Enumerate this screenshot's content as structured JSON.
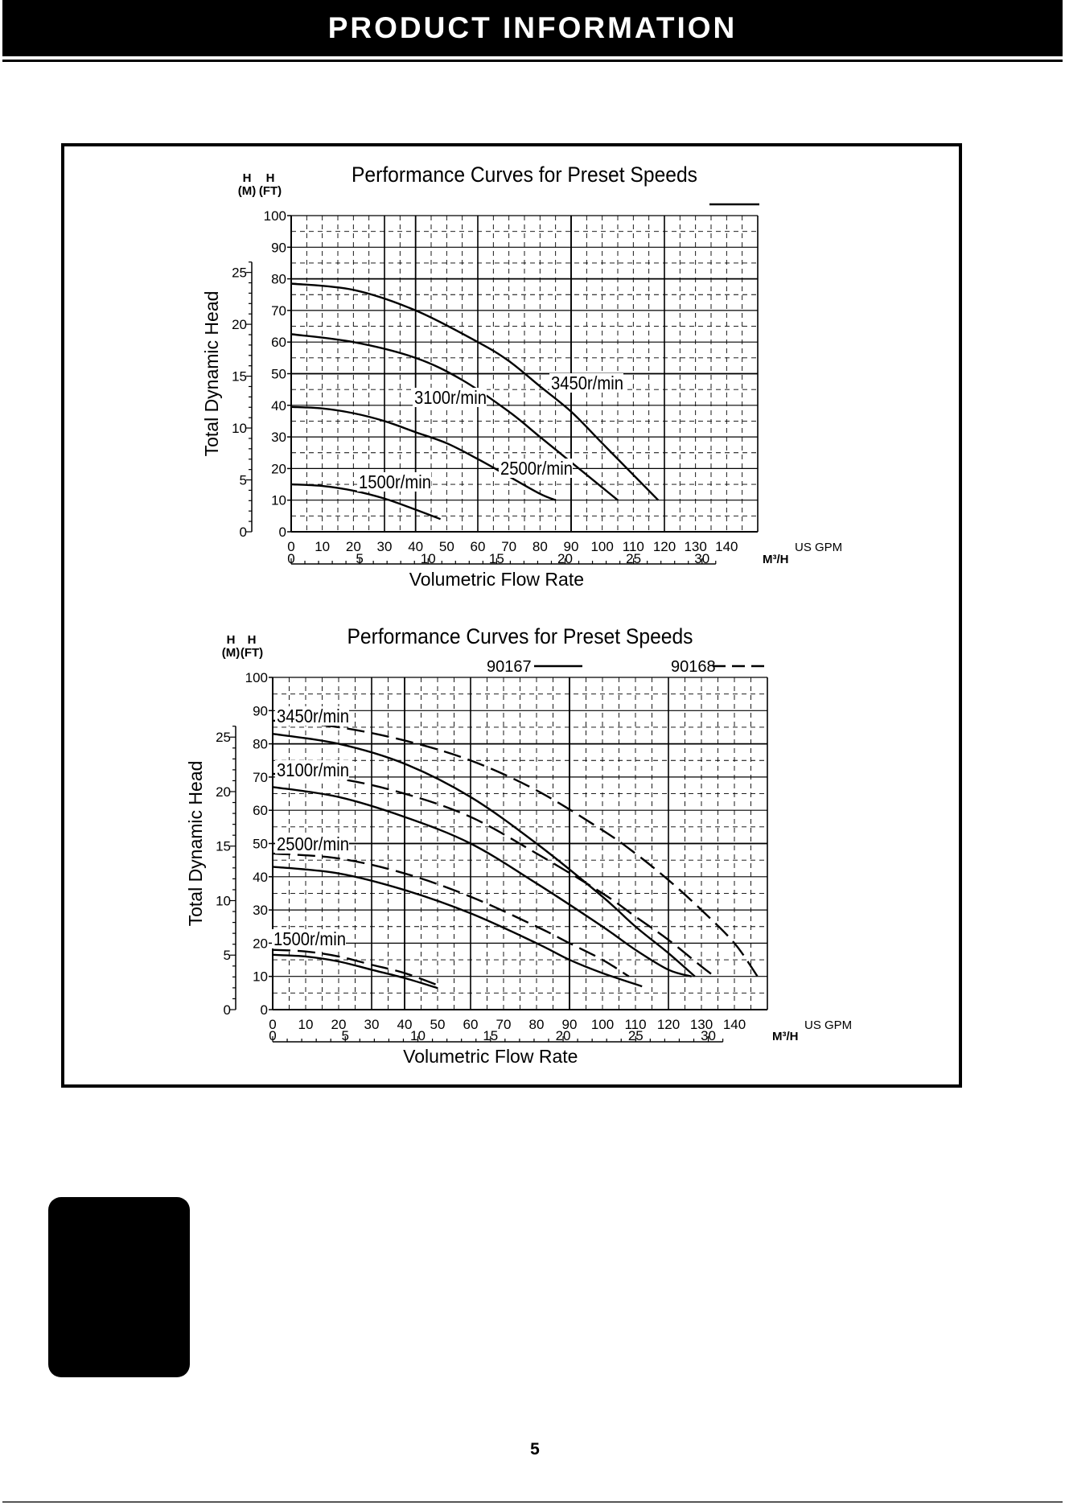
{
  "header": {
    "title": "PRODUCT  INFORMATION"
  },
  "page_number": "5",
  "colors": {
    "ink": "#000000",
    "background": "#ffffff"
  },
  "chart_data": [
    {
      "type": "line",
      "title": "Performance Curves for Preset Speeds",
      "xlabel": "Volumetric Flow Rate",
      "ylabel": "Total Dynamic Head",
      "x_unit": "US GPM",
      "x2_unit": "M³/H",
      "y_unit": "H (FT)",
      "y2_unit": "H (M)",
      "y_unit_letter": "H",
      "y_unit_paren": "(FT)",
      "y2_unit_letter": "H",
      "y2_unit_paren": "(M)",
      "xlim": [
        0,
        150
      ],
      "ylim": [
        0,
        100
      ],
      "x_ticks": [
        "0",
        "10",
        "20",
        "30",
        "40",
        "50",
        "60",
        "70",
        "80",
        "90",
        "100",
        "110",
        "120",
        "130",
        "140"
      ],
      "x2_ticks": [
        "0",
        "5",
        "10",
        "15",
        "20",
        "25",
        "30"
      ],
      "y_ticks": [
        "0",
        "10",
        "20",
        "30",
        "40",
        "50",
        "60",
        "70",
        "80",
        "90",
        "100"
      ],
      "y2_ticks": [
        "0",
        "5",
        "10",
        "15",
        "20",
        "25"
      ],
      "grid": true,
      "legend": [
        {
          "name": "",
          "style": "solid",
          "placement": "top-right"
        }
      ],
      "series": [
        {
          "name": "3450r/min",
          "style": "solid",
          "x": [
            0,
            20,
            40,
            60,
            70,
            80,
            90,
            100,
            110,
            118
          ],
          "y": [
            78.5,
            76.5,
            70,
            60,
            54,
            46,
            38,
            28,
            18,
            10
          ]
        },
        {
          "name": "3100r/min",
          "style": "solid",
          "x": [
            0,
            20,
            40,
            55,
            70,
            80,
            90,
            100,
            105
          ],
          "y": [
            62.5,
            60,
            55,
            48,
            38,
            30,
            22,
            14,
            10
          ]
        },
        {
          "name": "2500r/min",
          "style": "solid",
          "x": [
            0,
            10,
            20,
            30,
            40,
            50,
            60,
            70,
            80,
            85
          ],
          "y": [
            39.5,
            39,
            37.5,
            35,
            31.5,
            28,
            23,
            17.5,
            12,
            10
          ]
        },
        {
          "name": "1500r/min",
          "style": "solid",
          "x": [
            0,
            10,
            20,
            30,
            40,
            48
          ],
          "y": [
            15,
            14.5,
            13,
            10.5,
            7,
            4
          ]
        }
      ],
      "annotations": [
        "3450r/min",
        "3100r/min",
        "2500r/min",
        "1500r/min"
      ]
    },
    {
      "type": "line",
      "title": "Performance Curves for Preset Speeds",
      "xlabel": "Volumetric Flow Rate",
      "ylabel": "Total Dynamic Head",
      "x_unit": "US GPM",
      "x2_unit": "M³/H",
      "y_unit": "H (FT)",
      "y2_unit": "H (M)",
      "y_unit_letter": "H",
      "y_unit_paren": "(FT)",
      "y2_unit_letter": "H",
      "y2_unit_paren": "(M)",
      "xlim": [
        0,
        150
      ],
      "ylim": [
        0,
        100
      ],
      "x_ticks": [
        "0",
        "10",
        "20",
        "30",
        "40",
        "50",
        "60",
        "70",
        "80",
        "90",
        "100",
        "110",
        "120",
        "130",
        "140"
      ],
      "x2_ticks": [
        "0",
        "5",
        "10",
        "15",
        "20",
        "25",
        "30"
      ],
      "y_ticks": [
        "0",
        "10",
        "20",
        "30",
        "40",
        "50",
        "60",
        "70",
        "80",
        "90",
        "100"
      ],
      "y2_ticks": [
        "0",
        "5",
        "10",
        "15",
        "20",
        "25"
      ],
      "grid": true,
      "legend": [
        {
          "name": "90167",
          "style": "solid",
          "placement": "top-center"
        },
        {
          "name": "90168",
          "style": "dashed",
          "placement": "top-right"
        }
      ],
      "series": [
        {
          "name": "90167 3450r/min",
          "style": "solid",
          "x": [
            0,
            20,
            40,
            60,
            80,
            100,
            110,
            120,
            128
          ],
          "y": [
            83,
            80,
            74,
            64,
            50,
            34,
            25,
            17,
            10
          ]
        },
        {
          "name": "90168 3450r/min",
          "style": "dashed",
          "x": [
            0,
            20,
            40,
            60,
            80,
            100,
            110,
            120,
            130,
            140,
            147
          ],
          "y": [
            87,
            85,
            81,
            75,
            66,
            54,
            47,
            39,
            30,
            20,
            10
          ]
        },
        {
          "name": "90167 3100r/min",
          "style": "solid",
          "x": [
            0,
            20,
            40,
            60,
            80,
            100,
            110,
            120,
            127
          ],
          "y": [
            67,
            64,
            58,
            50,
            38,
            25,
            18,
            12,
            10
          ]
        },
        {
          "name": "90168 3100r/min",
          "style": "dashed",
          "x": [
            0,
            20,
            40,
            60,
            80,
            100,
            110,
            120,
            130,
            134
          ],
          "y": [
            71,
            69.5,
            65,
            58,
            47,
            35,
            28,
            21,
            13,
            10
          ]
        },
        {
          "name": "90167 2500r/min",
          "style": "solid",
          "x": [
            0,
            20,
            40,
            60,
            80,
            90,
            100,
            112
          ],
          "y": [
            43,
            41,
            36,
            29,
            20,
            15,
            11,
            7
          ]
        },
        {
          "name": "90168 2500r/min",
          "style": "dashed",
          "x": [
            0,
            20,
            40,
            60,
            80,
            90,
            100,
            108
          ],
          "y": [
            47,
            45.5,
            41,
            34,
            25,
            20,
            15,
            10
          ]
        },
        {
          "name": "90167 1500r/min",
          "style": "solid",
          "x": [
            0,
            10,
            20,
            30,
            40,
            50
          ],
          "y": [
            16.5,
            16,
            14.5,
            12,
            9.5,
            6.5
          ]
        },
        {
          "name": "90168 1500r/min",
          "style": "dashed",
          "x": [
            0,
            10,
            20,
            30,
            40,
            51
          ],
          "y": [
            18,
            17.5,
            16,
            13.5,
            11,
            7
          ]
        }
      ],
      "annotations": [
        "3450r/min",
        "3100r/min",
        "2500r/min",
        "1500r/min"
      ]
    }
  ]
}
